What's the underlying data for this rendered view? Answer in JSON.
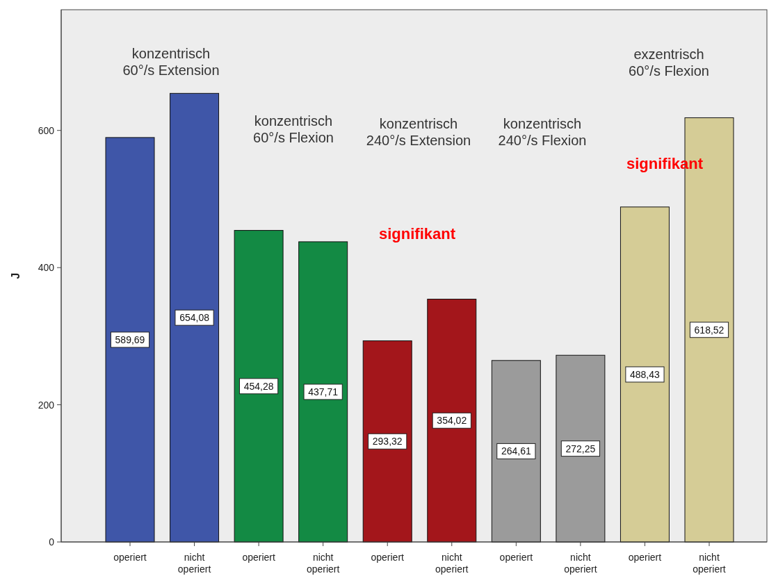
{
  "chart_data": {
    "type": "bar",
    "ylabel": "J",
    "categories": [
      "operiert",
      "nicht operiert",
      "operiert",
      "nicht operiert",
      "operiert",
      "nicht operiert",
      "operiert",
      "nicht operiert",
      "operiert",
      "nicht operiert"
    ],
    "values": [
      589.69,
      654.08,
      454.28,
      437.71,
      293.32,
      354.02,
      264.61,
      272.25,
      488.43,
      618.52
    ],
    "colors": [
      "#3f56a8",
      "#3f56a8",
      "#138a44",
      "#138a44",
      "#a3161b",
      "#a3161b",
      "#9b9b9b",
      "#9b9b9b",
      "#d5cc96",
      "#d5cc96"
    ],
    "value_labels": [
      "589,69",
      "654,08",
      "454,28",
      "437,71",
      "293,32",
      "354,02",
      "264,61",
      "272,25",
      "488,43",
      "618,52"
    ],
    "ylim": [
      0,
      776
    ],
    "yticks": [
      0,
      200,
      400,
      600
    ],
    "grid": false,
    "annotations": [
      "konzentrisch 60°/s Extension",
      "konzentrisch 60°/s Flexion",
      "konzentrisch 240°/s Extension",
      "konzentrisch 240°/s Flexion",
      "exzentrisch 60°/s Flexion",
      "signifikant",
      "signifikant"
    ]
  }
}
